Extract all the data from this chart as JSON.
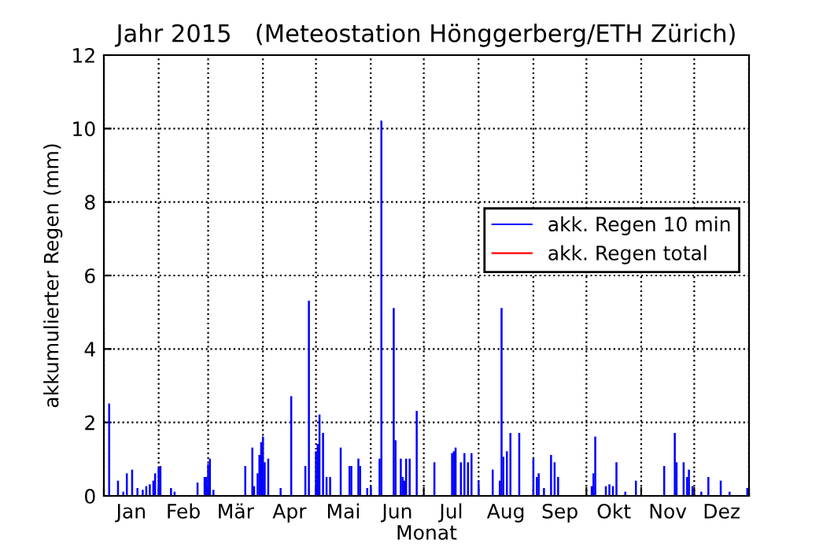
{
  "chart_data": {
    "type": "bar",
    "title": "Jahr 2015   (Meteostation Hönggerberg/ETH Zürich)",
    "xlabel": "Monat",
    "ylabel": "akkumulierter Regen (mm)",
    "xlim": [
      "2015-01-01",
      "2016-01-01"
    ],
    "ylim": [
      0,
      12
    ],
    "yticks": [
      0,
      2,
      4,
      6,
      8,
      10,
      12
    ],
    "xticks": [
      {
        "value": "2015-01-01",
        "label": null
      },
      {
        "value": "2015-02-01",
        "label": null
      },
      {
        "value": "2015-03-01",
        "label": null
      },
      {
        "value": "2015-04-01",
        "label": null
      },
      {
        "value": "2015-05-01",
        "label": null
      },
      {
        "value": "2015-06-01",
        "label": null
      },
      {
        "value": "2015-07-01",
        "label": null
      },
      {
        "value": "2015-08-01",
        "label": null
      },
      {
        "value": "2015-09-01",
        "label": null
      },
      {
        "value": "2015-10-01",
        "label": null
      },
      {
        "value": "2015-11-01",
        "label": null
      },
      {
        "value": "2015-12-01",
        "label": null
      },
      {
        "value": "2016-01-01",
        "label": null
      },
      {
        "value": "2015-01-16T12:00",
        "label": "Jan"
      },
      {
        "value": "2015-02-15",
        "label": "Feb"
      },
      {
        "value": "2015-03-16T12:00",
        "label": "Mär"
      },
      {
        "value": "2015-04-16",
        "label": "Apr"
      },
      {
        "value": "2015-05-16T12:00",
        "label": "Mai"
      },
      {
        "value": "2015-06-16",
        "label": "Jun"
      },
      {
        "value": "2015-07-16T12:00",
        "label": "Jul"
      },
      {
        "value": "2015-08-16T12:00",
        "label": "Aug"
      },
      {
        "value": "2015-09-16",
        "label": "Sep"
      },
      {
        "value": "2015-10-16T12:00",
        "label": "Okt"
      },
      {
        "value": "2015-11-16",
        "label": "Nov"
      },
      {
        "value": "2015-12-16T12:00",
        "label": "Dez"
      }
    ],
    "grid": true,
    "legend": "right",
    "series": [
      {
        "name": "akk. Regen 10 min",
        "color": "#0000ff",
        "x": [
          "2015-01-04",
          "2015-01-09",
          "2015-01-12",
          "2015-01-14",
          "2015-01-17",
          "2015-01-20",
          "2015-01-23",
          "2015-01-25",
          "2015-01-27",
          "2015-01-29",
          "2015-01-30",
          "2015-02-01",
          "2015-02-02",
          "2015-02-08",
          "2015-02-10",
          "2015-02-23",
          "2015-02-27",
          "2015-02-28",
          "2015-03-01",
          "2015-03-02",
          "2015-03-04",
          "2015-03-22",
          "2015-03-26",
          "2015-03-27",
          "2015-03-29",
          "2015-03-30",
          "2015-03-31",
          "2015-04-01",
          "2015-04-02",
          "2015-04-04",
          "2015-04-11",
          "2015-04-17",
          "2015-04-25",
          "2015-04-27",
          "2015-05-01",
          "2015-05-02",
          "2015-05-03",
          "2015-05-05",
          "2015-05-07",
          "2015-05-09",
          "2015-05-15",
          "2015-05-20",
          "2015-05-21",
          "2015-05-25",
          "2015-05-26",
          "2015-05-30",
          "2015-06-01",
          "2015-06-06",
          "2015-06-07",
          "2015-06-14",
          "2015-06-15",
          "2015-06-18",
          "2015-06-19",
          "2015-06-20",
          "2015-06-21",
          "2015-06-23",
          "2015-06-27",
          "2015-07-07",
          "2015-07-17",
          "2015-07-18",
          "2015-07-19",
          "2015-07-22",
          "2015-07-24",
          "2015-07-26",
          "2015-07-28",
          "2015-08-01",
          "2015-08-09",
          "2015-08-13",
          "2015-08-14",
          "2015-08-15",
          "2015-08-17",
          "2015-08-19",
          "2015-08-24",
          "2015-09-01",
          "2015-09-03",
          "2015-09-04",
          "2015-09-07",
          "2015-09-11",
          "2015-09-13",
          "2015-09-15",
          "2015-10-04",
          "2015-10-05",
          "2015-10-06",
          "2015-10-12",
          "2015-10-14",
          "2015-10-16",
          "2015-10-18",
          "2015-10-23",
          "2015-10-29",
          "2015-11-14",
          "2015-11-20",
          "2015-11-21",
          "2015-11-25",
          "2015-11-27",
          "2015-11-28",
          "2015-11-30",
          "2015-12-05",
          "2015-12-09",
          "2015-12-16",
          "2015-12-21",
          "2015-12-31"
        ],
        "values": [
          2.5,
          0.4,
          0.1,
          0.6,
          0.7,
          0.2,
          0.15,
          0.25,
          0.3,
          0.4,
          0.6,
          0.75,
          0.8,
          0.2,
          0.1,
          0.35,
          0.5,
          0.5,
          0.85,
          1.0,
          0.15,
          0.8,
          1.3,
          0.25,
          0.6,
          1.1,
          1.45,
          1.6,
          0.9,
          1.0,
          0.2,
          2.7,
          0.8,
          5.3,
          1.2,
          1.4,
          2.2,
          1.7,
          0.5,
          0.5,
          1.3,
          0.8,
          0.8,
          1.0,
          0.8,
          0.2,
          0.25,
          1.0,
          10.2,
          5.1,
          1.5,
          1.0,
          0.5,
          0.4,
          1.0,
          1.0,
          2.3,
          0.9,
          1.15,
          1.2,
          1.3,
          0.9,
          1.15,
          0.9,
          1.15,
          0.4,
          0.7,
          0.4,
          5.1,
          1.05,
          1.2,
          1.7,
          1.7,
          1.0,
          0.5,
          0.6,
          0.2,
          1.1,
          0.9,
          0.5,
          0.25,
          0.6,
          1.6,
          0.25,
          0.3,
          0.25,
          0.9,
          0.1,
          0.4,
          0.8,
          1.7,
          0.9,
          0.9,
          0.5,
          0.7,
          0.25,
          0.1,
          0.5,
          0.4,
          0.1,
          0.2
        ]
      },
      {
        "name": "akk. Regen total",
        "color": "#ff0000"
      }
    ]
  }
}
